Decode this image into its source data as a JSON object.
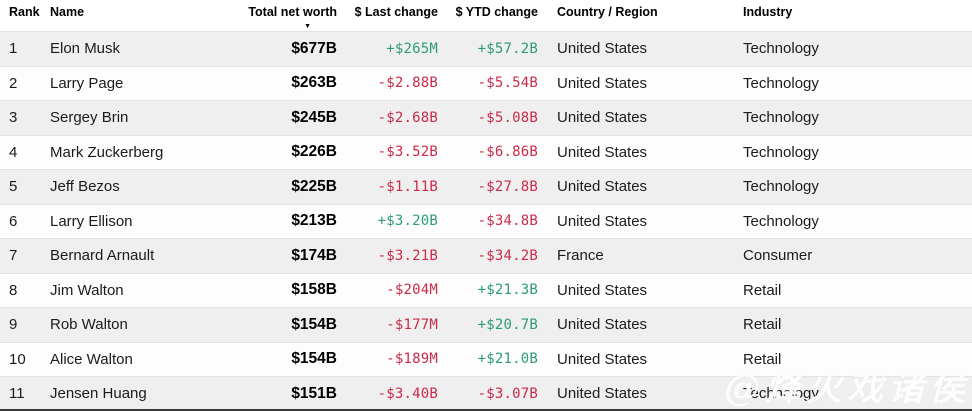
{
  "table": {
    "columns": [
      {
        "key": "rank",
        "label": "Rank"
      },
      {
        "key": "name",
        "label": "Name"
      },
      {
        "key": "net_worth",
        "label": "Total net worth",
        "sort_indicator": "desc"
      },
      {
        "key": "last_change",
        "label": "$ Last change"
      },
      {
        "key": "ytd_change",
        "label": "$ YTD change"
      },
      {
        "key": "country",
        "label": "Country / Region"
      },
      {
        "key": "industry",
        "label": "Industry"
      }
    ],
    "rows": [
      {
        "rank": "1",
        "name": "Elon Musk",
        "net_worth": "$677B",
        "last_change": "+$265M",
        "last_dir": "up",
        "ytd_change": "+$57.2B",
        "ytd_dir": "up",
        "country": "United States",
        "industry": "Technology"
      },
      {
        "rank": "2",
        "name": "Larry Page",
        "net_worth": "$263B",
        "last_change": "-$2.88B",
        "last_dir": "down",
        "ytd_change": "-$5.54B",
        "ytd_dir": "down",
        "country": "United States",
        "industry": "Technology"
      },
      {
        "rank": "3",
        "name": "Sergey Brin",
        "net_worth": "$245B",
        "last_change": "-$2.68B",
        "last_dir": "down",
        "ytd_change": "-$5.08B",
        "ytd_dir": "down",
        "country": "United States",
        "industry": "Technology"
      },
      {
        "rank": "4",
        "name": "Mark Zuckerberg",
        "net_worth": "$226B",
        "last_change": "-$3.52B",
        "last_dir": "down",
        "ytd_change": "-$6.86B",
        "ytd_dir": "down",
        "country": "United States",
        "industry": "Technology"
      },
      {
        "rank": "5",
        "name": "Jeff Bezos",
        "net_worth": "$225B",
        "last_change": "-$1.11B",
        "last_dir": "down",
        "ytd_change": "-$27.8B",
        "ytd_dir": "down",
        "country": "United States",
        "industry": "Technology"
      },
      {
        "rank": "6",
        "name": "Larry Ellison",
        "net_worth": "$213B",
        "last_change": "+$3.20B",
        "last_dir": "up",
        "ytd_change": "-$34.8B",
        "ytd_dir": "down",
        "country": "United States",
        "industry": "Technology"
      },
      {
        "rank": "7",
        "name": "Bernard Arnault",
        "net_worth": "$174B",
        "last_change": "-$3.21B",
        "last_dir": "down",
        "ytd_change": "-$34.2B",
        "ytd_dir": "down",
        "country": "France",
        "industry": "Consumer"
      },
      {
        "rank": "8",
        "name": "Jim Walton",
        "net_worth": "$158B",
        "last_change": "-$204M",
        "last_dir": "down",
        "ytd_change": "+$21.3B",
        "ytd_dir": "up",
        "country": "United States",
        "industry": "Retail"
      },
      {
        "rank": "9",
        "name": "Rob Walton",
        "net_worth": "$154B",
        "last_change": "-$177M",
        "last_dir": "down",
        "ytd_change": "+$20.7B",
        "ytd_dir": "up",
        "country": "United States",
        "industry": "Retail"
      },
      {
        "rank": "10",
        "name": "Alice Walton",
        "net_worth": "$154B",
        "last_change": "-$189M",
        "last_dir": "down",
        "ytd_change": "+$21.0B",
        "ytd_dir": "up",
        "country": "United States",
        "industry": "Retail"
      },
      {
        "rank": "11",
        "name": "Jensen Huang",
        "net_worth": "$151B",
        "last_change": "-$3.40B",
        "last_dir": "down",
        "ytd_change": "-$3.07B",
        "ytd_dir": "down",
        "country": "United States",
        "industry": "Technology"
      }
    ]
  },
  "icons": {
    "sort_desc_arrow": "▼"
  },
  "colors": {
    "positive": "#2E9B77",
    "negative": "#CB2B49",
    "row_alt": "#EFEFEF"
  },
  "watermark": {
    "text": "@烽火戏诸侯"
  }
}
